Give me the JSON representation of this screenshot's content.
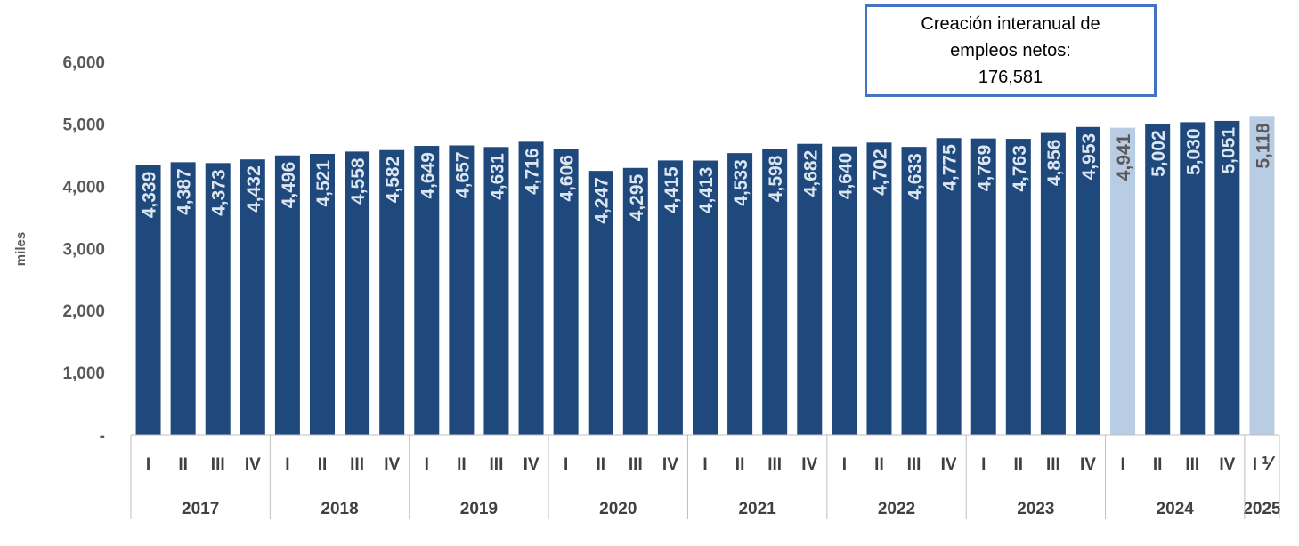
{
  "chart_data": {
    "type": "bar",
    "ylabel": "miles",
    "ylim": [
      0,
      6000
    ],
    "yticks": [
      "-",
      "1,000",
      "2,000",
      "3,000",
      "4,000",
      "5,000",
      "6,000"
    ],
    "grid": false,
    "legend": "none",
    "colors": {
      "bar": "#1f497d",
      "highlight": "#b8cce4",
      "label_on_dark": "#dce6f1",
      "label_on_light": "#595959"
    },
    "years": [
      {
        "year": "2017",
        "quarters": [
          "I",
          "II",
          "III",
          "IV"
        ]
      },
      {
        "year": "2018",
        "quarters": [
          "I",
          "II",
          "III",
          "IV"
        ]
      },
      {
        "year": "2019",
        "quarters": [
          "I",
          "II",
          "III",
          "IV"
        ]
      },
      {
        "year": "2020",
        "quarters": [
          "I",
          "II",
          "III",
          "IV"
        ]
      },
      {
        "year": "2021",
        "quarters": [
          "I",
          "II",
          "III",
          "IV"
        ]
      },
      {
        "year": "2022",
        "quarters": [
          "I",
          "II",
          "III",
          "IV"
        ]
      },
      {
        "year": "2023",
        "quarters": [
          "I",
          "II",
          "III",
          "IV"
        ]
      },
      {
        "year": "2024",
        "quarters": [
          "I",
          "II",
          "III",
          "IV"
        ]
      },
      {
        "year": "2025",
        "quarters": [
          "I ⅟"
        ]
      }
    ],
    "values": [
      4339,
      4387,
      4373,
      4432,
      4496,
      4521,
      4558,
      4582,
      4649,
      4657,
      4631,
      4716,
      4606,
      4247,
      4295,
      4415,
      4413,
      4533,
      4598,
      4682,
      4640,
      4702,
      4633,
      4775,
      4769,
      4763,
      4856,
      4953,
      4941,
      5002,
      5030,
      5051,
      5118
    ],
    "value_labels": [
      "4,339",
      "4,387",
      "4,373",
      "4,432",
      "4,496",
      "4,521",
      "4,558",
      "4,582",
      "4,649",
      "4,657",
      "4,631",
      "4,716",
      "4,606",
      "4,247",
      "4,295",
      "4,415",
      "4,413",
      "4,533",
      "4,598",
      "4,682",
      "4,640",
      "4,702",
      "4,633",
      "4,775",
      "4,769",
      "4,763",
      "4,856",
      "4,953",
      "4,941",
      "5,002",
      "5,030",
      "5,051",
      "5,118"
    ],
    "highlighted": [
      "2024 I",
      "2025 I"
    ]
  },
  "callout": {
    "line1": "Creación interanual de",
    "line2": "empleos netos:",
    "line3": "176,581"
  }
}
